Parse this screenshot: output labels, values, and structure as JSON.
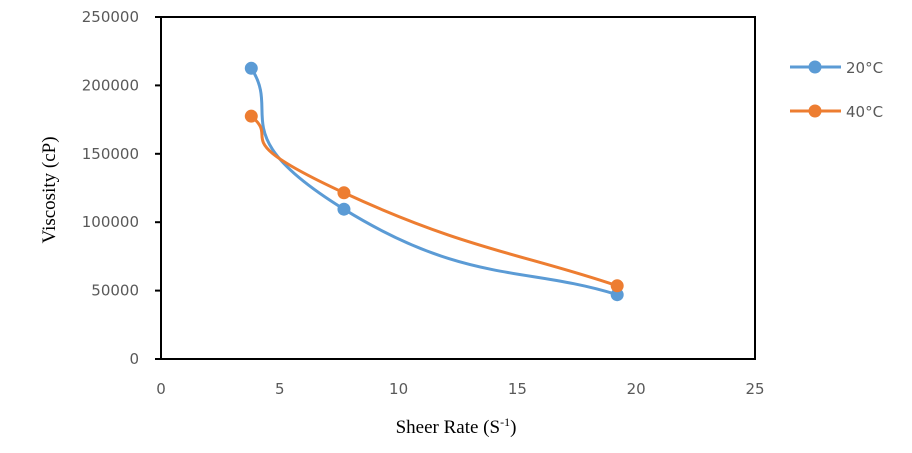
{
  "chart_data": {
    "type": "line",
    "smooth": true,
    "title": "",
    "xlabel": "Sheer Rate (S",
    "xlabel_superscript": "-1",
    "xlabel_suffix": ")",
    "ylabel": "Viscosity (cP)",
    "xlim": [
      0,
      25
    ],
    "ylim": [
      0,
      250000
    ],
    "xticks": [
      0,
      5,
      10,
      15,
      20,
      25
    ],
    "yticks": [
      0,
      50000,
      100000,
      150000,
      200000,
      250000
    ],
    "xtick_labels": [
      "0",
      "5",
      "10",
      "15",
      "20",
      "25"
    ],
    "ytick_labels": [
      "0",
      "50000",
      "100000",
      "150000",
      "200000",
      "250000"
    ],
    "grid": false,
    "legend_position": "right",
    "series": [
      {
        "name": "20°C",
        "color": "#5B9BD5",
        "x": [
          3.8,
          7.7,
          19.2
        ],
        "y": [
          212500,
          109500,
          47000
        ]
      },
      {
        "name": "40°C",
        "color": "#ED7D31",
        "x": [
          3.8,
          7.7,
          19.2
        ],
        "y": [
          177500,
          121500,
          53500
        ]
      }
    ]
  }
}
